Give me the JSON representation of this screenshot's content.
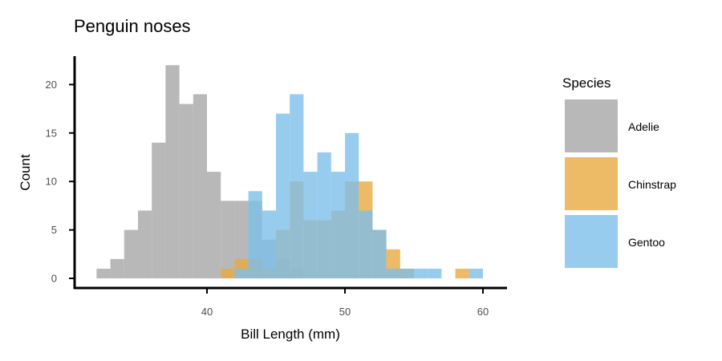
{
  "chart_data": {
    "type": "histogram",
    "title": "Penguin noses",
    "xlabel": "Bill Length (mm)",
    "ylabel": "Count",
    "xlim": [
      31,
      62
    ],
    "ylim": [
      -1,
      23
    ],
    "x_ticks": [
      40,
      50,
      60
    ],
    "y_ticks": [
      0,
      5,
      10,
      15,
      20
    ],
    "bin_width": 1,
    "bin_starts": [
      32,
      33,
      34,
      35,
      36,
      37,
      38,
      39,
      40,
      41,
      42,
      43,
      44,
      45,
      46,
      47,
      48,
      49,
      50,
      51,
      52,
      53,
      54,
      55,
      56,
      57,
      58,
      59
    ],
    "grid": false,
    "legend_title": "Species",
    "legend_position": "right",
    "series": [
      {
        "name": "Adelie",
        "color": "#a6a6a6",
        "values": [
          1,
          2,
          5,
          7,
          14,
          22,
          18,
          19,
          11,
          8,
          8,
          8,
          4,
          2,
          1,
          0,
          0,
          0,
          0,
          0,
          0,
          0,
          0,
          0,
          0,
          0,
          0,
          0
        ]
      },
      {
        "name": "Chinstrap",
        "color": "#e8a93e",
        "values": [
          0,
          0,
          0,
          0,
          0,
          0,
          0,
          0,
          0,
          1,
          2,
          2,
          1,
          5,
          10,
          6,
          6,
          7,
          10,
          10,
          5,
          3,
          1,
          0,
          0,
          0,
          1,
          0
        ]
      },
      {
        "name": "Gentoo",
        "color": "#7dbfea",
        "values": [
          0,
          0,
          0,
          0,
          0,
          0,
          0,
          0,
          0,
          0,
          1,
          9,
          7,
          17,
          19,
          11,
          13,
          11,
          15,
          7,
          5,
          1,
          1,
          1,
          1,
          0,
          0,
          1
        ]
      }
    ]
  }
}
